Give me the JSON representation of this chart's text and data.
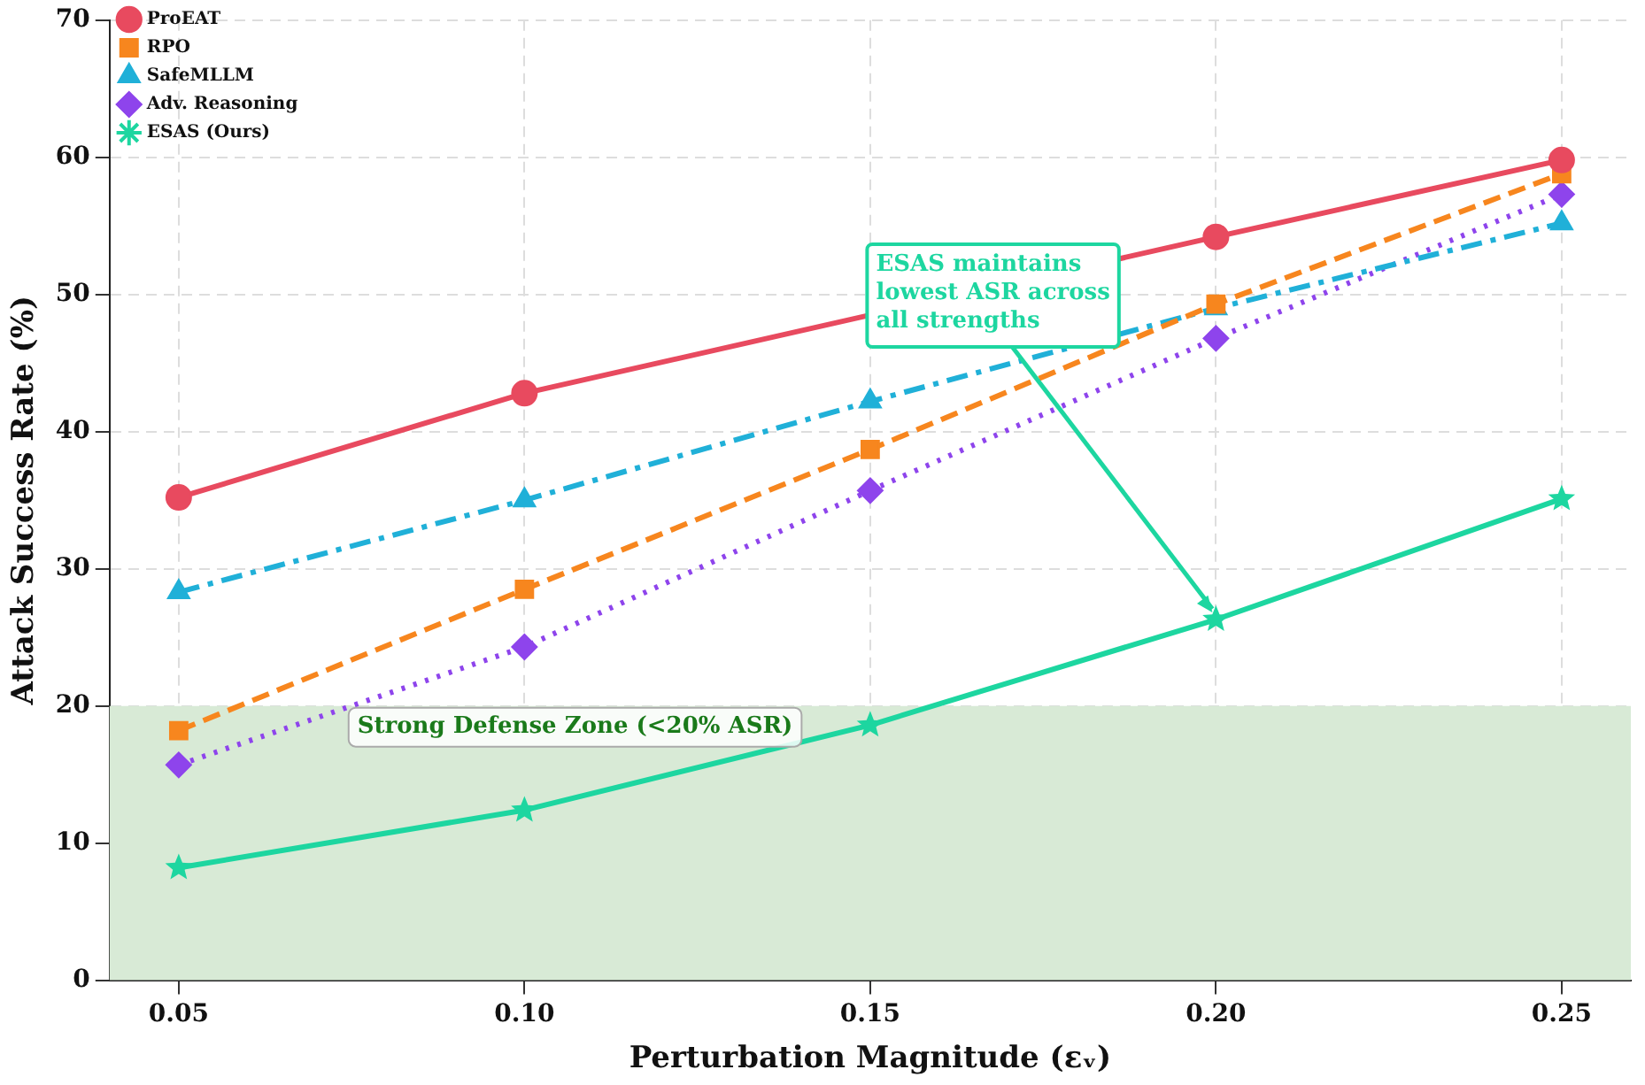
{
  "chart_data": {
    "type": "line",
    "xlabel": "Perturbation Magnitude (εᵥ)",
    "ylabel": "Attack Success Rate (%)",
    "x": [
      0.05,
      0.1,
      0.15,
      0.2,
      0.25
    ],
    "series": [
      {
        "name": "ProEAT",
        "color": "#e84a5f",
        "marker": "circle",
        "line_style": "solid",
        "values": [
          35.2,
          42.8,
          null,
          54.2,
          59.8
        ]
      },
      {
        "name": "RPO",
        "color": "#f7861e",
        "marker": "square",
        "line_style": "dashed",
        "values": [
          18.2,
          28.5,
          38.7,
          49.3,
          58.8
        ]
      },
      {
        "name": "SafeMLLM",
        "color": "#20b0d8",
        "marker": "triangle",
        "line_style": "dashdot",
        "values": [
          28.3,
          35.0,
          42.2,
          49.0,
          55.2
        ]
      },
      {
        "name": "Adv. Reasoning",
        "color": "#8e44ec",
        "marker": "diamond",
        "line_style": "dotted",
        "values": [
          15.7,
          24.3,
          35.7,
          46.8,
          57.3
        ]
      },
      {
        "name": "ESAS (Ours)",
        "color": "#1dd6a0",
        "marker": "star",
        "line_style": "solid",
        "values": [
          8.2,
          12.4,
          18.6,
          26.3,
          35.1
        ]
      }
    ],
    "xlim": [
      0.04,
      0.26
    ],
    "xticks": [
      0.05,
      {
        "value": 0.1,
        "label": "0.10"
      },
      0.15,
      {
        "value": 0.2,
        "label": "0.20"
      },
      0.25
    ],
    "ylim": [
      0,
      70
    ],
    "yticks": [
      0,
      10,
      20,
      30,
      40,
      50,
      60,
      70
    ],
    "bands": [
      {
        "axis": "y",
        "from": 0,
        "to": 20,
        "label": "Strong Defense Zone (<20% ASR)",
        "color": "#d8ead6"
      }
    ],
    "annotations": [
      {
        "text": "ESAS maintains\nlowest ASR across\nall strengths",
        "x": 0.2,
        "y": 26.3
      }
    ],
    "grid": true,
    "legend": "top left"
  }
}
